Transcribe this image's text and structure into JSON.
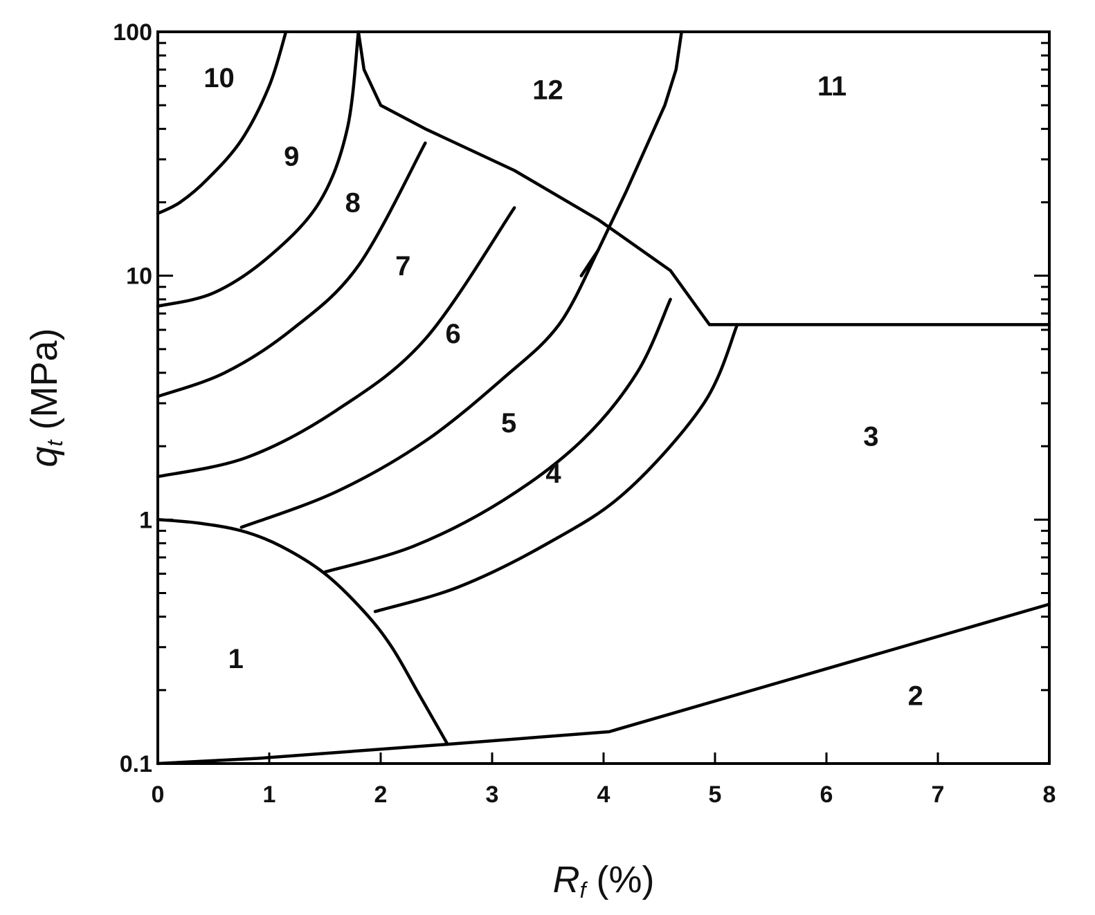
{
  "chart_data": {
    "type": "line",
    "title": "",
    "x_axis": {
      "label_symbol": "R",
      "label_subscript": "f",
      "label_unit": " (%)",
      "range": [
        0,
        8
      ],
      "scale": "linear",
      "major_ticks": [
        0,
        1,
        2,
        3,
        4,
        5,
        6,
        7,
        8
      ],
      "tick_labels": [
        "0",
        "1",
        "2",
        "3",
        "4",
        "5",
        "6",
        "7",
        "8"
      ]
    },
    "y_axis": {
      "label_symbol": "q",
      "label_subscript": "t",
      "label_unit": " (MPa)",
      "range": [
        0.1,
        100
      ],
      "scale": "log",
      "major_ticks": [
        0.1,
        1,
        10,
        100
      ],
      "tick_labels": [
        "0.1",
        "1",
        "10",
        "100"
      ]
    },
    "grid": false,
    "legend": "none",
    "series": [
      {
        "x": [
          0,
          0.35,
          0.75,
          1.1,
          1.5,
          1.85,
          2.1,
          2.35,
          2.6
        ],
        "y": [
          1.0,
          0.97,
          0.9,
          0.78,
          0.6,
          0.42,
          0.3,
          0.19,
          0.12
        ]
      },
      {
        "x": [
          0,
          0.9,
          2.6,
          4.05,
          8.0
        ],
        "y": [
          0.1,
          0.105,
          0.12,
          0.135,
          0.45
        ]
      },
      {
        "x": [
          1.8,
          1.85,
          2.0,
          2.4,
          3.2,
          3.95,
          4.6,
          4.95,
          8.0
        ],
        "y": [
          100,
          70,
          50,
          40,
          27,
          17,
          10.5,
          6.3,
          6.3
        ]
      },
      {
        "x": [
          4.7,
          4.65,
          4.55,
          4.2,
          3.95,
          3.8
        ],
        "y": [
          100,
          70,
          50,
          22,
          12.7,
          10
        ]
      },
      {
        "x": [
          0,
          0.2,
          0.45,
          0.75,
          1.0,
          1.15
        ],
        "y": [
          18,
          20,
          25,
          36,
          60,
          100
        ]
      },
      {
        "x": [
          0,
          0.5,
          1.0,
          1.45,
          1.7,
          1.8
        ],
        "y": [
          7.5,
          8.5,
          12,
          20,
          40,
          100
        ]
      },
      {
        "x": [
          0,
          0.6,
          1.2,
          1.8,
          2.4
        ],
        "y": [
          3.2,
          4.0,
          6.0,
          11,
          35
        ]
      },
      {
        "x": [
          0,
          0.8,
          1.6,
          2.4,
          3.2
        ],
        "y": [
          1.5,
          1.8,
          2.8,
          5.5,
          19
        ]
      },
      {
        "x": [
          0.75,
          1.6,
          2.4,
          3.1,
          3.6,
          3.95
        ],
        "y": [
          0.93,
          1.3,
          2.1,
          3.8,
          6.3,
          12.7
        ]
      },
      {
        "x": [
          1.5,
          2.3,
          3.1,
          3.8,
          4.3,
          4.6
        ],
        "y": [
          0.61,
          0.78,
          1.2,
          2.1,
          4.0,
          8.0
        ]
      },
      {
        "x": [
          1.95,
          2.7,
          3.5,
          4.2,
          4.9,
          5.2
        ],
        "y": [
          0.42,
          0.53,
          0.8,
          1.3,
          3.0,
          6.3
        ]
      }
    ],
    "annotations": [
      {
        "text": "1",
        "x": 0.7,
        "y": 0.27
      },
      {
        "text": "2",
        "x": 6.8,
        "y": 0.19
      },
      {
        "text": "3",
        "x": 6.4,
        "y": 2.2
      },
      {
        "text": "4",
        "x": 3.55,
        "y": 1.55
      },
      {
        "text": "5",
        "x": 3.15,
        "y": 2.5
      },
      {
        "text": "6",
        "x": 2.65,
        "y": 5.8
      },
      {
        "text": "7",
        "x": 2.2,
        "y": 11
      },
      {
        "text": "8",
        "x": 1.75,
        "y": 20
      },
      {
        "text": "9",
        "x": 1.2,
        "y": 31
      },
      {
        "text": "10",
        "x": 0.55,
        "y": 65
      },
      {
        "text": "12",
        "x": 3.5,
        "y": 58
      },
      {
        "text": "11",
        "x": 6.05,
        "y": 60
      }
    ]
  }
}
